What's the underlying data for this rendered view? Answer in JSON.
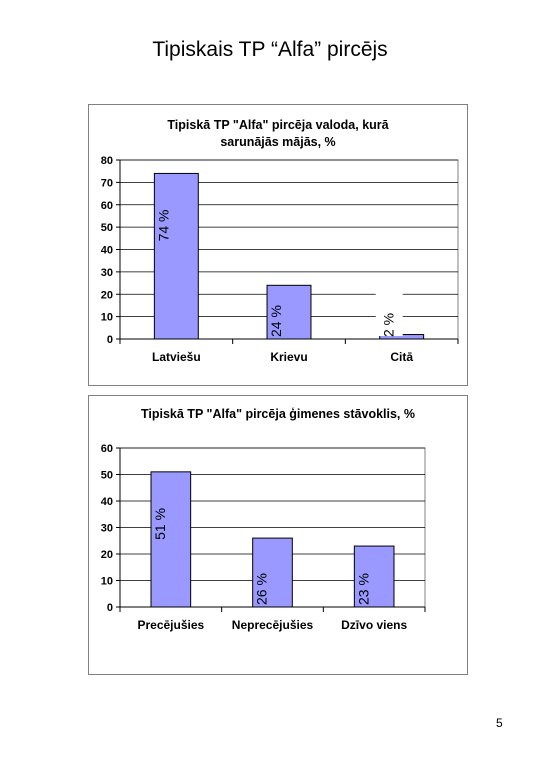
{
  "page": {
    "title": "Tipiskais TP “Alfa” pircējs",
    "page_number": "5"
  },
  "colors": {
    "bar_fill": "#9999ff",
    "bar_stroke": "#000000",
    "plot_border": "#808080",
    "grid": "#000000"
  },
  "chart_data": [
    {
      "type": "bar",
      "title_lines": [
        "Tipiskā TP \"Alfa\" pircēja valoda, kurā",
        "sarunājās mājās, %"
      ],
      "categories": [
        "Latviešu",
        "Krievu",
        "Citā"
      ],
      "values": [
        74,
        24,
        2
      ],
      "data_labels": [
        "74 %",
        "24 %",
        "2 %"
      ],
      "ylim": [
        0,
        80
      ],
      "yticks": [
        0,
        10,
        20,
        30,
        40,
        50,
        60,
        70,
        80
      ],
      "grid": true,
      "legend": "none"
    },
    {
      "type": "bar",
      "title_lines": [
        "Tipiskā TP \"Alfa\" pircēja ģimenes stāvoklis, %"
      ],
      "categories": [
        "Precējušies",
        "Neprecējušies",
        "Dzīvo viens"
      ],
      "values": [
        51,
        26,
        23
      ],
      "data_labels": [
        "51 %",
        "26 %",
        "23 %"
      ],
      "ylim": [
        0,
        60
      ],
      "yticks": [
        0,
        10,
        20,
        30,
        40,
        50,
        60
      ],
      "grid": true,
      "legend": "none"
    }
  ]
}
